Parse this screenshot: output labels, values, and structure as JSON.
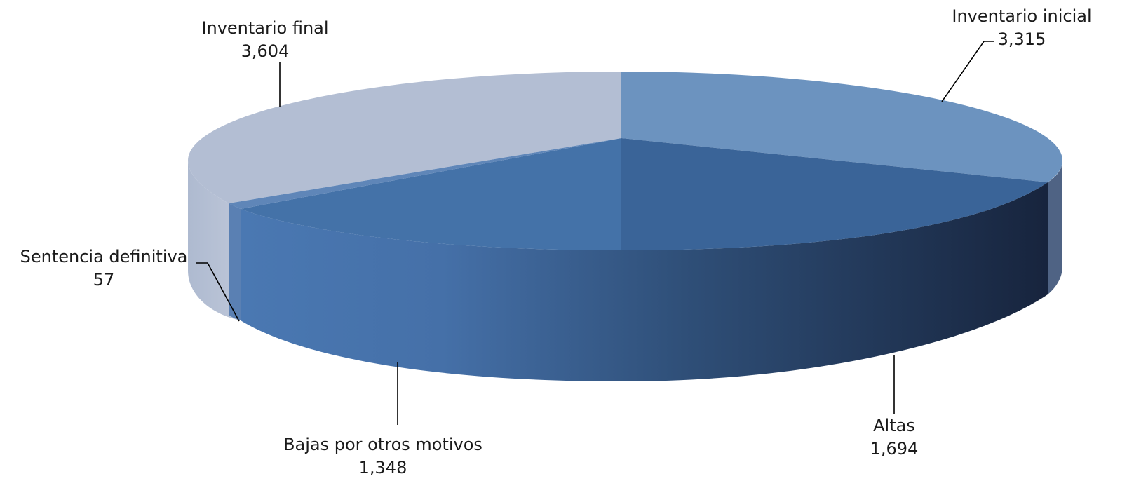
{
  "chart_data": {
    "type": "pie",
    "title": "",
    "slices": [
      {
        "label": "Inventario inicial",
        "value_label": "3,315",
        "value": 3315,
        "color": "#6c93bf"
      },
      {
        "label": "Altas",
        "value_label": "1,694",
        "value": 1694,
        "color": "#3a6498"
      },
      {
        "label": "Bajas por otros motivos",
        "value_label": "1,348",
        "value": 1348,
        "color": "#4472a8"
      },
      {
        "label": "Sentencia definitiva",
        "value_label": "57",
        "value": 57,
        "color": "#5f86b8"
      },
      {
        "label": "Inventario final",
        "value_label": "3,604",
        "value": 3604,
        "color": "#b3bed3"
      }
    ],
    "style": "3d"
  }
}
